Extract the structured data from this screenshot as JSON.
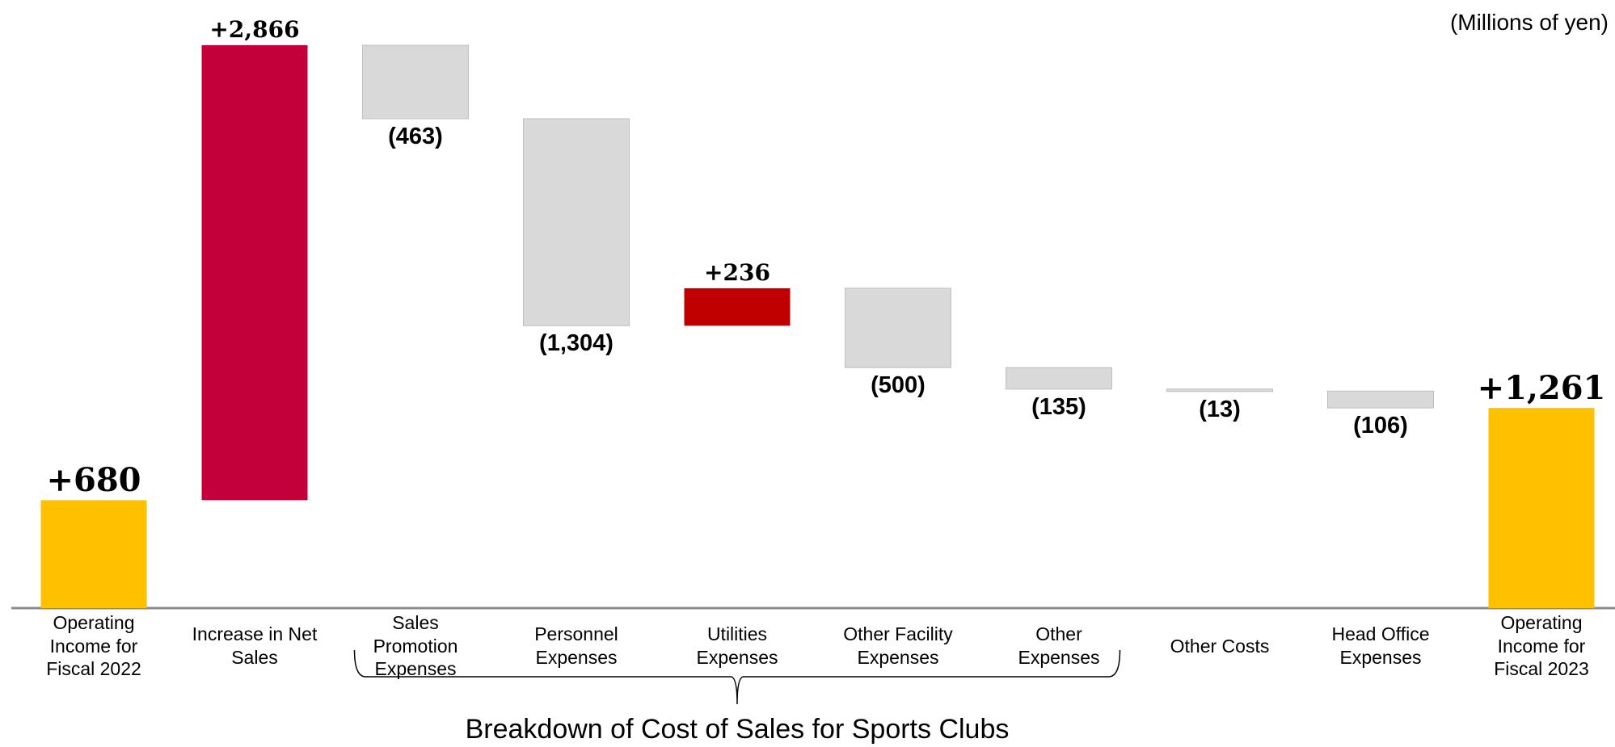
{
  "chart_data": {
    "type": "waterfall",
    "annotations": {
      "unit": "(Millions of yen)",
      "group_label": "Breakdown of Cost of Sales for Sports Clubs"
    },
    "group_span": [
      2,
      6
    ],
    "categories": [
      "Operating Income for Fiscal 2022",
      "Increase in Net Sales",
      "Sales Promotion Expenses",
      "Personnel Expenses",
      "Utilities Expenses",
      "Other Facility Expenses",
      "Other Expenses",
      "Other Costs",
      "Head Office Expenses",
      "Operating Income for Fiscal 2023"
    ],
    "values": [
      680,
      2866,
      -463,
      -1304,
      236,
      -500,
      -135,
      -13,
      -106,
      1261
    ],
    "value_labels": [
      "+680",
      "+2,866",
      "(463)",
      "(1,304)",
      "+236",
      "(500)",
      "(135)",
      "(13)",
      "(106)",
      "+1,261"
    ],
    "measure": [
      "absolute",
      "relative",
      "relative",
      "relative",
      "relative",
      "relative",
      "relative",
      "relative",
      "relative",
      "total"
    ],
    "colors": [
      "#ffc000",
      "#c4003a",
      "#d9d9d9",
      "#d9d9d9",
      "#c00000",
      "#d9d9d9",
      "#d9d9d9",
      "#d9d9d9",
      "#d9d9d9",
      "#ffc000"
    ]
  }
}
